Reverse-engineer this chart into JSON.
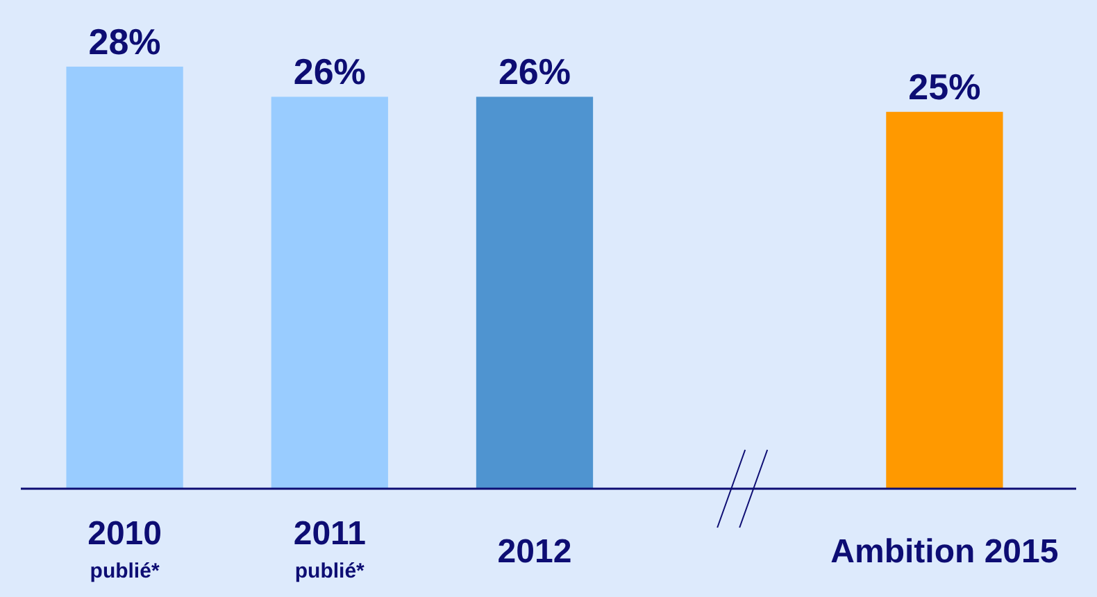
{
  "chart_data": {
    "type": "bar",
    "categories": [
      "2010\npublié*",
      "2011\npublié*",
      "2012",
      null,
      "Ambition 2015"
    ],
    "values": [
      28,
      26,
      26,
      null,
      25
    ],
    "colors": [
      "#99ccff",
      "#99ccff",
      "#4f94d0",
      null,
      "#ff9900"
    ],
    "value_labels": [
      "28%",
      "26%",
      "26%",
      null,
      "25%"
    ]
  }
}
